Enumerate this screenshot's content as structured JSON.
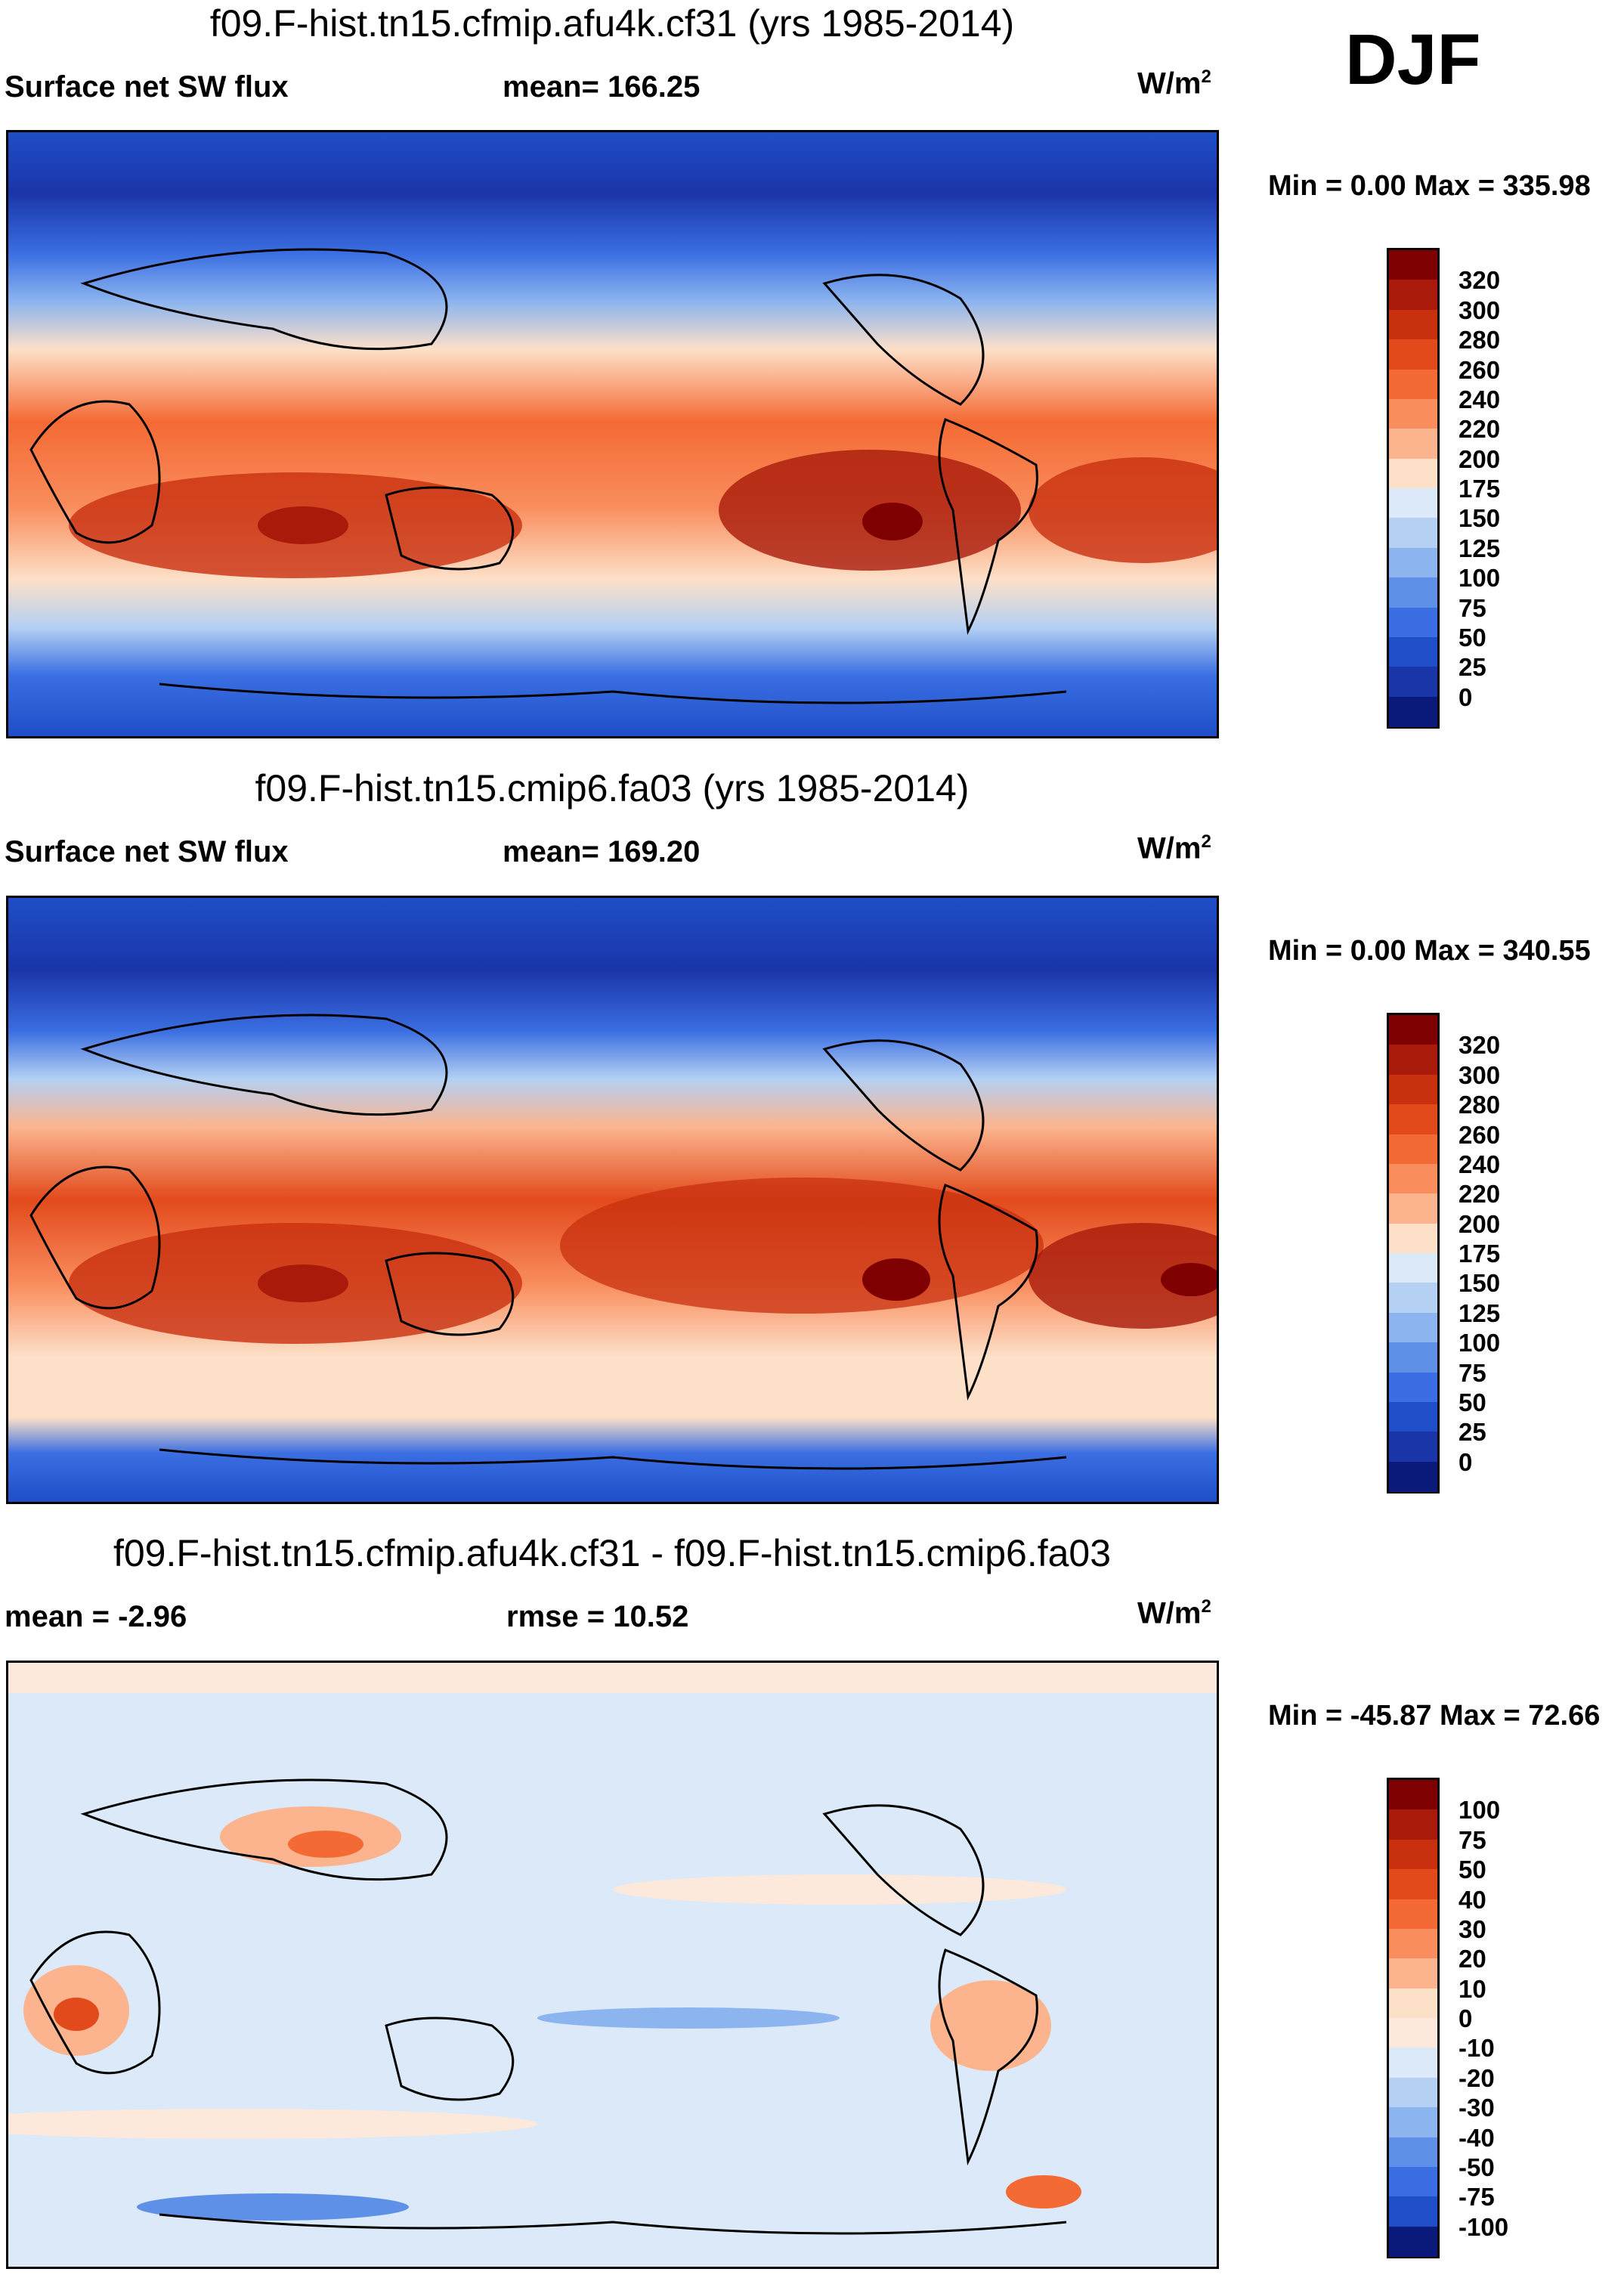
{
  "season": "DJF",
  "units_base": "W/m",
  "units_exp": "2",
  "panels": [
    {
      "title": "f09.F-hist.tn15.cfmip.afu4k.cf31 (yrs 1985-2014)",
      "left_label": "Surface net SW flux",
      "center_label": "mean= 166.25",
      "minmax": "Min =    0.00 Max = 335.98",
      "colorbar_labels": [
        "320",
        "300",
        "280",
        "260",
        "240",
        "220",
        "200",
        "175",
        "150",
        "125",
        "100",
        "75",
        "50",
        "25",
        "0"
      ],
      "colorbar_colors": [
        "#7f0000",
        "#a91a0a",
        "#c8300f",
        "#e24a1c",
        "#f46a34",
        "#f98d5d",
        "#fbb48e",
        "#fde0c8",
        "#dbe9f8",
        "#b4d0f3",
        "#8cb4ef",
        "#5f90e8",
        "#3a6ee2",
        "#1f4ec8",
        "#1a35a8",
        "#0a1a7a"
      ]
    },
    {
      "title": "f09.F-hist.tn15.cmip6.fa03 (yrs 1985-2014)",
      "left_label": "Surface net SW flux",
      "center_label": "mean= 169.20",
      "minmax": "Min =    0.00 Max = 340.55",
      "colorbar_labels": [
        "320",
        "300",
        "280",
        "260",
        "240",
        "220",
        "200",
        "175",
        "150",
        "125",
        "100",
        "75",
        "50",
        "25",
        "0"
      ],
      "colorbar_colors": [
        "#7f0000",
        "#a91a0a",
        "#c8300f",
        "#e24a1c",
        "#f46a34",
        "#f98d5d",
        "#fbb48e",
        "#fde0c8",
        "#dbe9f8",
        "#b4d0f3",
        "#8cb4ef",
        "#5f90e8",
        "#3a6ee2",
        "#1f4ec8",
        "#1a35a8",
        "#0a1a7a"
      ]
    },
    {
      "title": "f09.F-hist.tn15.cfmip.afu4k.cf31 - f09.F-hist.tn15.cmip6.fa03",
      "left_label": "mean =  -2.96",
      "center_label": "rmse =  10.52",
      "minmax": "Min = -45.87 Max =  72.66",
      "colorbar_labels": [
        "100",
        "75",
        "50",
        "40",
        "30",
        "20",
        "10",
        "0",
        "-10",
        "-20",
        "-30",
        "-40",
        "-50",
        "-75",
        "-100"
      ],
      "colorbar_colors": [
        "#7f0000",
        "#a91a0a",
        "#c8300f",
        "#e24a1c",
        "#f46a34",
        "#f98d5d",
        "#fbb48e",
        "#fde0c8",
        "#fde9dc",
        "#dbe9f8",
        "#b4d0f3",
        "#8cb4ef",
        "#5f90e8",
        "#3a6ee2",
        "#1f4ec8",
        "#0a1a7a"
      ]
    }
  ],
  "chart_data": [
    {
      "type": "heatmap",
      "title": "f09.F-hist.tn15.cfmip.afu4k.cf31 (yrs 1985-2014)",
      "variable": "Surface net SW flux",
      "units": "W/m2",
      "season": "DJF",
      "mean": 166.25,
      "min": 0.0,
      "max": 335.98,
      "contour_levels": [
        0,
        25,
        50,
        75,
        100,
        125,
        150,
        175,
        200,
        220,
        240,
        260,
        280,
        300,
        320
      ]
    },
    {
      "type": "heatmap",
      "title": "f09.F-hist.tn15.cmip6.fa03 (yrs 1985-2014)",
      "variable": "Surface net SW flux",
      "units": "W/m2",
      "season": "DJF",
      "mean": 169.2,
      "min": 0.0,
      "max": 340.55,
      "contour_levels": [
        0,
        25,
        50,
        75,
        100,
        125,
        150,
        175,
        200,
        220,
        240,
        260,
        280,
        300,
        320
      ]
    },
    {
      "type": "heatmap",
      "title": "f09.F-hist.tn15.cfmip.afu4k.cf31 - f09.F-hist.tn15.cmip6.fa03",
      "units": "W/m2",
      "season": "DJF",
      "mean": -2.96,
      "rmse": 10.52,
      "min": -45.87,
      "max": 72.66,
      "contour_levels": [
        -100,
        -75,
        -50,
        -40,
        -30,
        -20,
        -10,
        0,
        10,
        20,
        30,
        40,
        50,
        75,
        100
      ]
    }
  ]
}
